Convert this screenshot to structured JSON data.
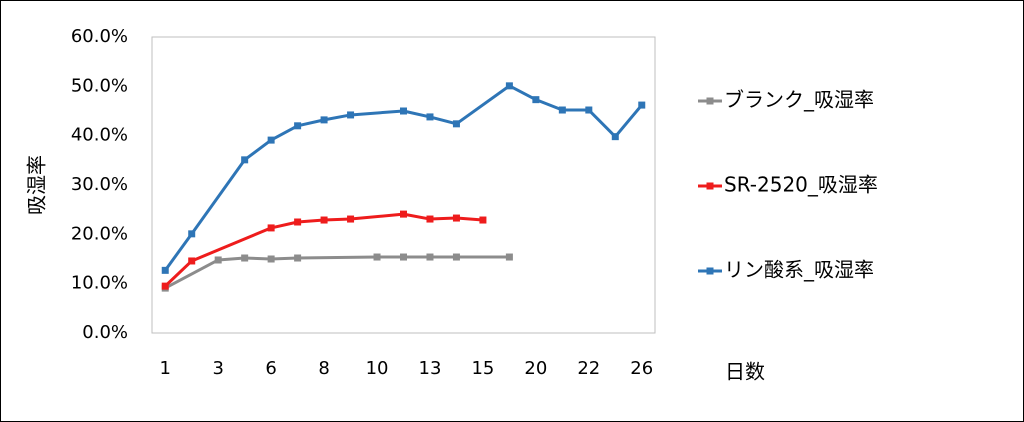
{
  "chart_data": {
    "type": "line",
    "y_label": "吸湿率",
    "x_label": "日数",
    "categories": [
      "1",
      null,
      "3",
      null,
      "6",
      null,
      "8",
      null,
      "10",
      null,
      "13",
      null,
      "15",
      null,
      "20",
      null,
      "22",
      null,
      "26"
    ],
    "series": [
      {
        "name": "ブランク_吸湿率",
        "color": "#8c8c8c",
        "values": [
          9.1,
          null,
          14.8,
          15.2,
          15.0,
          15.2,
          null,
          null,
          15.4,
          15.4,
          15.4,
          15.4,
          null,
          15.4,
          null,
          null,
          null,
          null,
          null
        ]
      },
      {
        "name": "SR-2520_吸湿率",
        "color": "#ee1c1c",
        "values": [
          9.5,
          14.6,
          null,
          null,
          21.3,
          22.5,
          22.9,
          23.1,
          null,
          24.1,
          23.1,
          23.3,
          22.9,
          null,
          null,
          null,
          null,
          null,
          null
        ]
      },
      {
        "name": "リン酸系_吸湿率",
        "color": "#2e75b6",
        "values": [
          12.7,
          20.1,
          null,
          35.1,
          39.1,
          42.0,
          43.2,
          44.2,
          null,
          45.0,
          43.8,
          42.4,
          null,
          50.1,
          47.3,
          45.2,
          45.2,
          39.8,
          46.2
        ]
      }
    ],
    "ylim": [
      0,
      60
    ],
    "yticks": [
      {
        "value": 0,
        "label": "0.0%"
      },
      {
        "value": 10,
        "label": "10.0%"
      },
      {
        "value": 20,
        "label": "20.0%"
      },
      {
        "value": 30,
        "label": "30.0%"
      },
      {
        "value": 40,
        "label": "40.0%"
      },
      {
        "value": 50,
        "label": "50.0%"
      },
      {
        "value": 60,
        "label": "60.0%"
      }
    ],
    "grid": false,
    "connect_gaps": true,
    "legend": "right"
  }
}
